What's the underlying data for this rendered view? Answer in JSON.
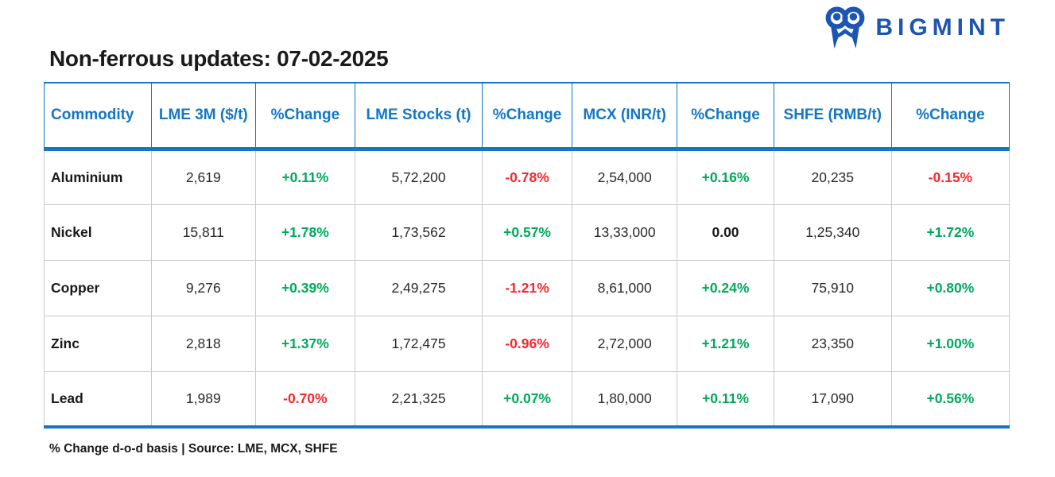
{
  "brand": {
    "name": "BIGMINT",
    "icon": "bigmint-owl-m-icon"
  },
  "title": "Non-ferrous updates: 07-02-2025",
  "footnote": "% Change d-o-d basis | Source: LME, MCX, SHFE",
  "colors": {
    "header_blue": "#1277c5",
    "logo_blue": "#1d55b2",
    "positive": "#00a95e",
    "negative": "#f5282d",
    "neutral": "#1a1a1a"
  },
  "chart_data": {
    "type": "table",
    "title": "Non-ferrous updates: 07-02-2025",
    "footnote": "% Change d-o-d basis | Source: LME, MCX, SHFE",
    "columns": [
      {
        "label": "Commodity",
        "type": "text"
      },
      {
        "label": "LME 3M ($/t)",
        "type": "number"
      },
      {
        "label": "%Change",
        "type": "percent"
      },
      {
        "label": "LME Stocks (t)",
        "type": "number"
      },
      {
        "label": "%Change",
        "type": "percent"
      },
      {
        "label": "MCX (INR/t)",
        "type": "number"
      },
      {
        "label": "%Change",
        "type": "percent"
      },
      {
        "label": "SHFE (RMB/t)",
        "type": "number"
      },
      {
        "label": "%Change",
        "type": "percent"
      }
    ],
    "rows": [
      [
        "Aluminium",
        "2,619",
        "+0.11%",
        "5,72,200",
        "-0.78%",
        "2,54,000",
        "+0.16%",
        "20,235",
        "-0.15%"
      ],
      [
        "Nickel",
        "15,811",
        "+1.78%",
        "1,73,562",
        "+0.57%",
        "13,33,000",
        "0.00",
        "1,25,340",
        "+1.72%"
      ],
      [
        "Copper",
        "9,276",
        "+0.39%",
        "2,49,275",
        "-1.21%",
        "8,61,000",
        "+0.24%",
        "75,910",
        "+0.80%"
      ],
      [
        "Zinc",
        "2,818",
        "+1.37%",
        "1,72,475",
        "-0.96%",
        "2,72,000",
        "+1.21%",
        "23,350",
        "+1.00%"
      ],
      [
        "Lead",
        "1,989",
        "-0.70%",
        "2,21,325",
        "+0.07%",
        "1,80,000",
        "+0.11%",
        "17,090",
        "+0.56%"
      ]
    ]
  }
}
